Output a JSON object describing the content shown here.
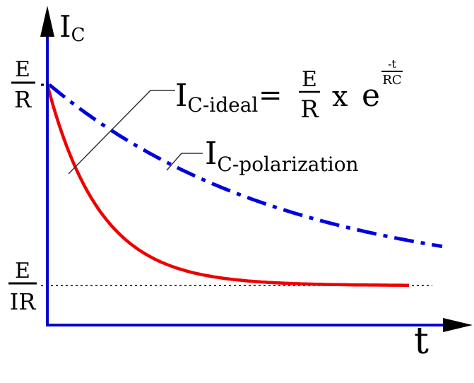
{
  "axes": {
    "y_label_main": "I",
    "y_label_sub": "C",
    "x_label": "t",
    "color": "#0000cc"
  },
  "levels": {
    "top": {
      "numerator": "E",
      "denominator": "R"
    },
    "bottom": {
      "numerator": "E",
      "denominator": "IR"
    }
  },
  "equation": {
    "lhs_main": "I",
    "lhs_sub": "C-ideal",
    "equals": "=",
    "frac_num": "E",
    "frac_den": "R",
    "times": "x",
    "base": "e",
    "exp_num": "-t",
    "exp_den": "RC"
  },
  "polarization_label": {
    "main": "I",
    "sub": "C-polarization"
  },
  "curves": {
    "ideal": {
      "color": "#ee0000",
      "style": "solid"
    },
    "polarization": {
      "color": "#0000dd",
      "style": "dash-dot"
    },
    "asymptote": {
      "color": "#000000",
      "style": "dotted"
    }
  }
}
